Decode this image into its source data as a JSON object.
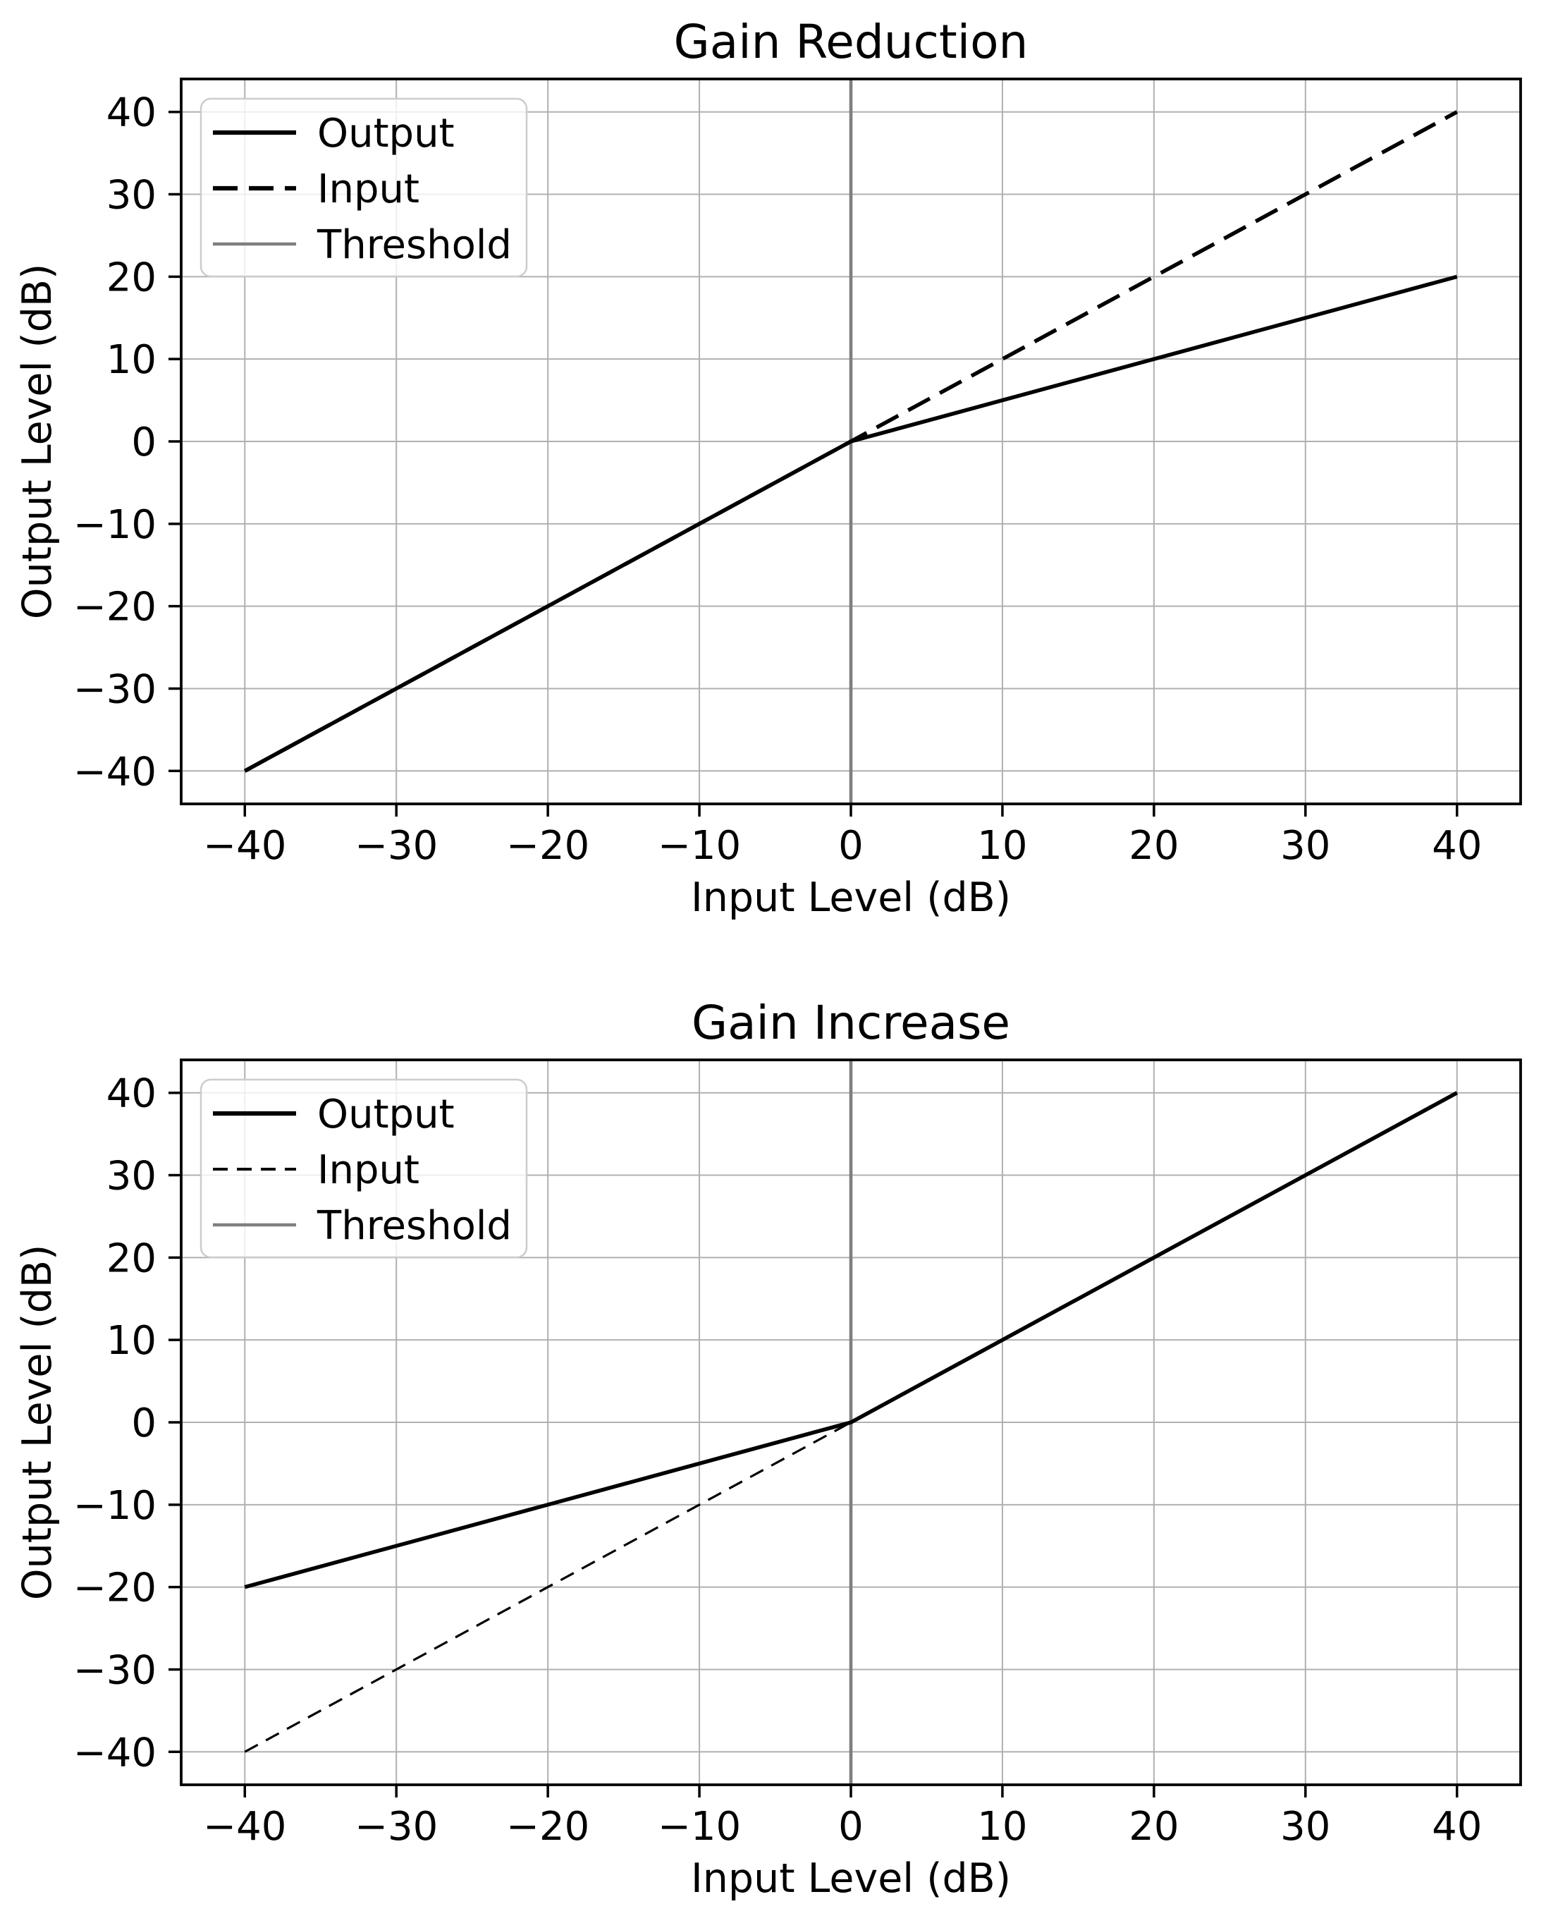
{
  "page": {
    "background": "#ffffff"
  },
  "style": {
    "grid_color": "#b0b0b0",
    "spine_color": "#000000",
    "tick_color": "#000000",
    "text_color": "#000000",
    "legend_border_color": "#cccccc",
    "legend_background": "rgba(255,255,255,0.8)"
  },
  "chart_data": [
    {
      "type": "line",
      "title": "Gain Reduction",
      "xlabel": "Input Level (dB)",
      "ylabel": "Output Level (dB)",
      "xlim": [
        -44.2,
        44.2
      ],
      "ylim": [
        -44,
        44
      ],
      "grid": true,
      "xticks": {
        "values": [
          -40,
          -30,
          -20,
          -10,
          0,
          10,
          20,
          30,
          40
        ],
        "labels": [
          "−40",
          "−30",
          "−20",
          "−10",
          "0",
          "10",
          "20",
          "30",
          "40"
        ]
      },
      "yticks": {
        "values": [
          -40,
          -30,
          -20,
          -10,
          0,
          10,
          20,
          30,
          40
        ],
        "labels": [
          "−40",
          "−30",
          "−20",
          "−10",
          "0",
          "10",
          "20",
          "30",
          "40"
        ]
      },
      "legend": {
        "position": "upper left",
        "entries": [
          "Output",
          "Input",
          "Threshold"
        ]
      },
      "series": [
        {
          "name": "Output",
          "kind": "line",
          "color": "#000000",
          "width": 5.5,
          "dash": null,
          "x": [
            -40,
            0,
            40
          ],
          "y": [
            -40,
            0,
            20
          ]
        },
        {
          "name": "Input",
          "kind": "line",
          "color": "#000000",
          "width": 5.5,
          "dash": [
            35,
            16
          ],
          "x": [
            -40,
            40
          ],
          "y": [
            -40,
            40
          ]
        },
        {
          "name": "Threshold",
          "kind": "vline",
          "color": "#7f7f7f",
          "width": 4.6,
          "dash": null,
          "x": 0
        }
      ]
    },
    {
      "type": "line",
      "title": "Gain Increase",
      "xlabel": "Input Level (dB)",
      "ylabel": "Output Level (dB)",
      "xlim": [
        -44.2,
        44.2
      ],
      "ylim": [
        -44,
        44
      ],
      "grid": true,
      "xticks": {
        "values": [
          -40,
          -30,
          -20,
          -10,
          0,
          10,
          20,
          30,
          40
        ],
        "labels": [
          "−40",
          "−30",
          "−20",
          "−10",
          "0",
          "10",
          "20",
          "30",
          "40"
        ]
      },
      "yticks": {
        "values": [
          -40,
          -30,
          -20,
          -10,
          0,
          10,
          20,
          30,
          40
        ],
        "labels": [
          "−40",
          "−30",
          "−20",
          "−10",
          "0",
          "10",
          "20",
          "30",
          "40"
        ]
      },
      "legend": {
        "position": "upper left",
        "entries": [
          "Output",
          "Input",
          "Threshold"
        ]
      },
      "series": [
        {
          "name": "Output",
          "kind": "line",
          "color": "#000000",
          "width": 5.5,
          "dash": null,
          "x": [
            -40,
            0,
            40
          ],
          "y": [
            -20,
            0,
            40
          ]
        },
        {
          "name": "Input",
          "kind": "line",
          "color": "#000000",
          "width": 3.2,
          "dash": [
            21,
            13
          ],
          "x": [
            -40,
            40
          ],
          "y": [
            -40,
            40
          ]
        },
        {
          "name": "Threshold",
          "kind": "vline",
          "color": "#7f7f7f",
          "width": 4.6,
          "dash": null,
          "x": 0
        }
      ]
    }
  ]
}
